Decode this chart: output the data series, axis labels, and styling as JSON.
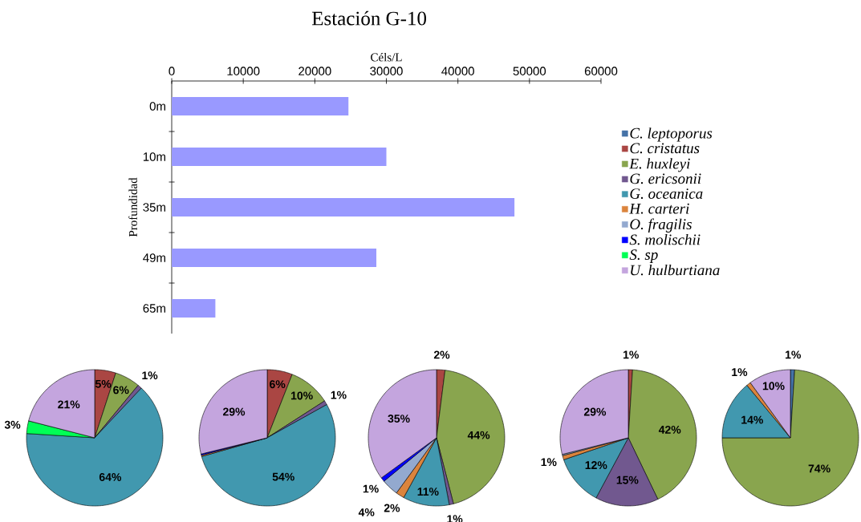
{
  "chart_data": [
    {
      "type": "bar",
      "orientation": "horizontal",
      "title": "Estación G-10",
      "xlabel": "Céls/L",
      "ylabel": "Profundidad",
      "categories": [
        "0m",
        "10m",
        "35m",
        "49m",
        "65m"
      ],
      "values": [
        24700,
        30000,
        47900,
        28600,
        6100
      ],
      "color": "#9999ff",
      "xlim": [
        0,
        60000
      ],
      "xticks": [
        0,
        10000,
        20000,
        30000,
        40000,
        50000,
        60000
      ]
    },
    {
      "type": "pie",
      "legend": "top right",
      "categories": [
        "C. leptoporus",
        "C. cristatus",
        "E. huxleyi",
        "G. ericsonii",
        "G. oceanica",
        "H. carteri",
        "O. fragilis",
        "S. molischii",
        "S. sp",
        "U. hulburtiana"
      ],
      "colors": [
        "#4572a7",
        "#aa4643",
        "#89a54e",
        "#71588f",
        "#4198af",
        "#db843d",
        "#93a9cf",
        "#0000ff",
        "#00ff55",
        "#c4a5de"
      ],
      "series": [
        {
          "values": [
            0,
            5,
            6,
            1,
            64,
            0,
            0,
            0,
            3,
            21
          ],
          "value_labels": [
            null,
            "5%",
            "6%",
            "1%",
            "64%",
            null,
            null,
            null,
            "3%",
            "21%"
          ]
        },
        {
          "values": [
            0,
            6,
            10,
            1,
            54,
            0.3,
            0,
            0.3,
            0,
            29
          ],
          "value_labels": [
            null,
            "6%",
            "10%",
            "1%",
            "54%",
            null,
            null,
            null,
            null,
            "29%"
          ]
        },
        {
          "values": [
            0,
            2,
            44,
            1,
            11,
            2,
            4,
            1,
            0,
            35
          ],
          "value_labels": [
            null,
            "2%",
            "44%",
            "1%",
            "11%",
            "2%",
            "4%",
            "1%",
            null,
            "35%"
          ]
        },
        {
          "values": [
            0,
            1,
            42,
            15,
            12,
            1,
            0.3,
            0,
            0,
            29
          ],
          "value_labels": [
            null,
            "1%",
            "42%",
            "15%",
            "12%",
            "1%",
            null,
            null,
            null,
            "29%"
          ]
        },
        {
          "values": [
            1,
            0,
            74,
            0,
            14,
            1,
            0,
            0,
            0,
            10
          ],
          "value_labels": [
            "1%",
            null,
            "74%",
            null,
            "14%",
            "1%",
            null,
            null,
            null,
            "10%"
          ]
        }
      ]
    }
  ]
}
